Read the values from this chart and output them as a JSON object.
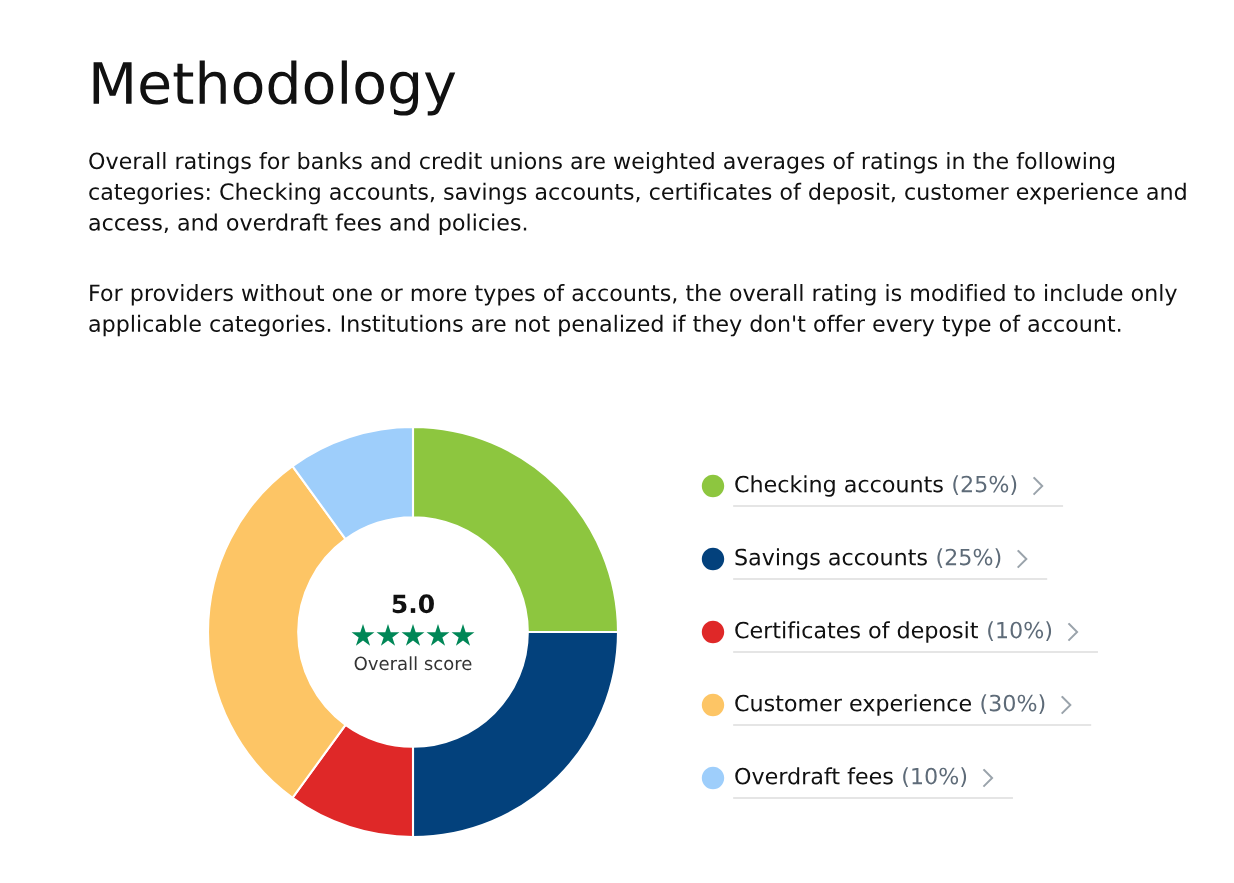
{
  "chart_data": {
    "type": "donut",
    "title": "Methodology",
    "subtitle": "Overall ratings for banks and credit unions are weighted averages of ratings in the following categories: Checking accounts, savings accounts, certificates of deposit, customer experience and access, and overdraft fees and policies.",
    "annotations": [
      "For providers without one or more types of accounts, the overall rating is modified to include only applicable categories. Institutions are not penalized if they don't offer every type of account.",
      "5.0",
      "Overall score"
    ],
    "categories": [
      "Checking accounts",
      "Savings accounts",
      "Certificates of deposit",
      "Customer experience",
      "Overdraft fees"
    ],
    "values": [
      25,
      25,
      10,
      30,
      10
    ],
    "colors": [
      "#8dc63f",
      "#03417c",
      "#df2828",
      "#fdc565",
      "#9ecefb"
    ],
    "value_labels": [
      "(25%)",
      "(25%)",
      "(10%)",
      "(30%)",
      "(10%)"
    ],
    "legend": "right"
  }
}
